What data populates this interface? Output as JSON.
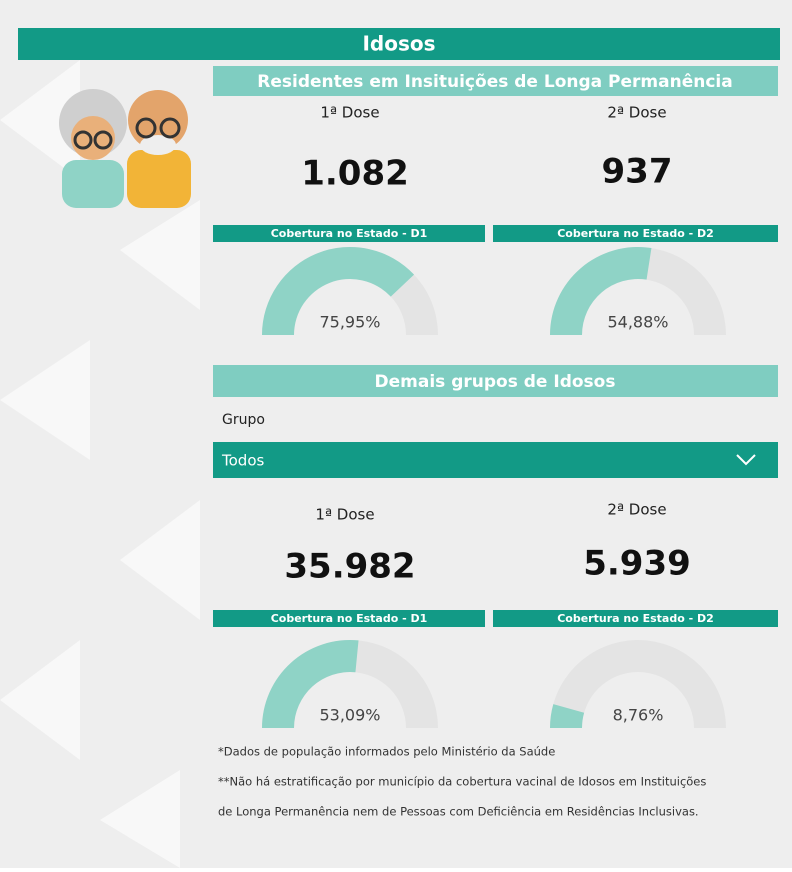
{
  "header": {
    "title": "Idosos"
  },
  "residents": {
    "title": "Residentes em Insituições de Longa Permanência",
    "dose1": {
      "label": "1ª Dose",
      "value": "1.082"
    },
    "dose2": {
      "label": "2ª Dose",
      "value": "937"
    },
    "gauges": [
      {
        "title": "Cobertura no Estado - D1",
        "value": 75.95,
        "label": "75,95%"
      },
      {
        "title": "Cobertura no Estado - D2",
        "value": 54.88,
        "label": "54,88%"
      }
    ]
  },
  "others": {
    "title": "Demais grupos de Idosos",
    "filter": {
      "label": "Grupo",
      "selected": "Todos"
    },
    "dose1": {
      "label": "1ª Dose",
      "value": "35.982"
    },
    "dose2": {
      "label": "2ª Dose",
      "value": "5.939"
    },
    "gauges": [
      {
        "title": "Cobertura no Estado - D1",
        "value": 53.09,
        "label": "53,09%"
      },
      {
        "title": "Cobertura no Estado - D2",
        "value": 8.76,
        "label": "8,76%"
      }
    ]
  },
  "notes": [
    "*Dados de população informados pelo Ministério da Saúde",
    "**Não há estratificação por município da cobertura vacinal de Idosos em Instituições",
    "de Longa Permanência nem de Pessoas com Deficiência em Residências Inclusivas."
  ]
}
